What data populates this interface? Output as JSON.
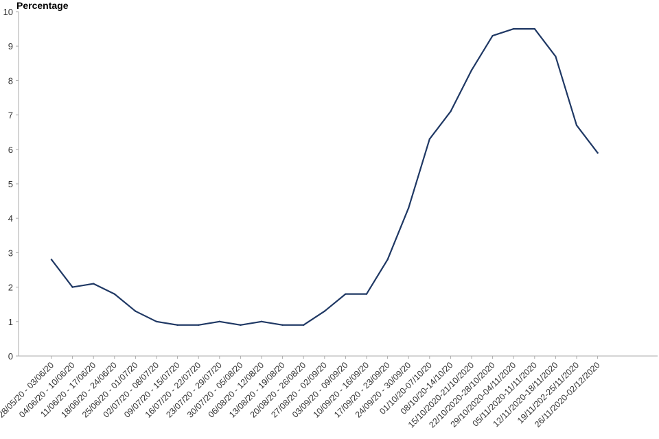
{
  "chart_data": {
    "type": "line",
    "title": "",
    "xlabel": "",
    "ylabel": "Percentage",
    "ylim": [
      0,
      10
    ],
    "yticks": [
      0,
      1,
      2,
      3,
      4,
      5,
      6,
      7,
      8,
      9,
      10
    ],
    "grid": false,
    "line_color": "#1f3864",
    "categories": [
      "28/05/20 - 03/06/20",
      "04/06/20 - 10/06/20",
      "11/06/20 - 17/06/20",
      "18/06/20 - 24/06/20",
      "25/06/20 - 01/07/20",
      "02/07/20 - 08/07/20",
      "09/07/20 - 15/07/20",
      "16/07/20 - 22/07/20",
      "23/07/20 - 29/07/20",
      "30/07/20 - 05/08/20",
      "06/08/20 - 12/08/20",
      "13/08/20 - 19/08/20",
      "20/08/20 - 26/08/20",
      "27/08/20 - 02/09/20",
      "03/09/20 - 09/09/20",
      "10/09/20 - 16/09/20",
      "17/09/20 - 23/09/20",
      "24/09/20 - 30/09/20",
      "01/10/20-07/10/20",
      "08/10/20-14/10/20",
      "15/10/2020-21/10/2020",
      "22/10/2020-28/10/2020",
      "29/10/2020-04/11/2020",
      "05/11/2020-11/11/2020",
      "12/11/2020-18/11/2020",
      "19/11/202-25/11/2020",
      "26/11/2020-02/12/2020"
    ],
    "series": [
      {
        "values": [
          2.8,
          2.0,
          2.1,
          1.8,
          1.3,
          1.0,
          0.9,
          0.9,
          1.0,
          0.9,
          1.0,
          0.9,
          0.9,
          1.3,
          1.8,
          1.8,
          2.8,
          4.3,
          6.3,
          7.1,
          8.3,
          9.3,
          9.5,
          9.5,
          8.7,
          6.7,
          5.9
        ]
      }
    ]
  }
}
